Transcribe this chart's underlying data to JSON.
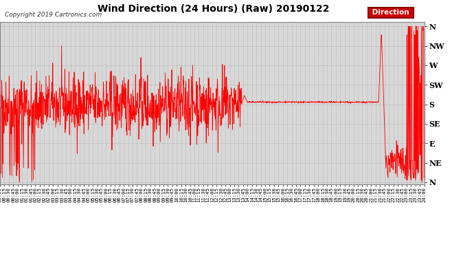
{
  "title": "Wind Direction (24 Hours) (Raw) 20190122",
  "copyright": "Copyright 2019 Cartronics.com",
  "legend_label": "Direction",
  "line_color": "#ff0000",
  "bg_color": "#ffffff",
  "plot_bg": "#d8d8d8",
  "grid_color": "#aaaaaa",
  "ytick_labels": [
    "N",
    "NE",
    "E",
    "SE",
    "S",
    "SW",
    "W",
    "NW",
    "N"
  ],
  "ytick_values": [
    0,
    45,
    90,
    135,
    180,
    225,
    270,
    315,
    360
  ],
  "ylim": [
    -5,
    370
  ],
  "xtick_interval_minutes": 15,
  "total_minutes": 1440
}
